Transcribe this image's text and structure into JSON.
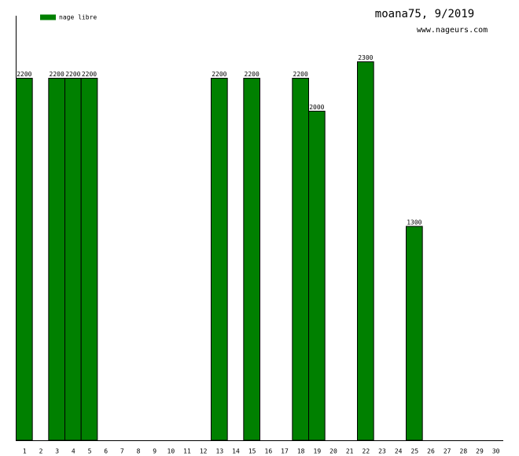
{
  "chart_data": {
    "type": "bar",
    "title": "moana75, 9/2019",
    "subtitle": "www.nageurs.com",
    "categories": [
      "1",
      "2",
      "3",
      "4",
      "5",
      "6",
      "7",
      "8",
      "9",
      "10",
      "11",
      "12",
      "13",
      "14",
      "15",
      "16",
      "17",
      "18",
      "19",
      "20",
      "21",
      "22",
      "23",
      "24",
      "25",
      "26",
      "27",
      "28",
      "29",
      "30"
    ],
    "series": [
      {
        "name": "nage libre",
        "color": "#008000",
        "values": [
          2200,
          null,
          2200,
          2200,
          2200,
          null,
          null,
          null,
          null,
          null,
          null,
          null,
          2200,
          null,
          2200,
          null,
          null,
          2200,
          2000,
          null,
          null,
          2300,
          null,
          null,
          1300,
          null,
          null,
          null,
          null,
          null
        ]
      }
    ],
    "ylim": [
      0,
      2580
    ],
    "legend": "top-left"
  }
}
